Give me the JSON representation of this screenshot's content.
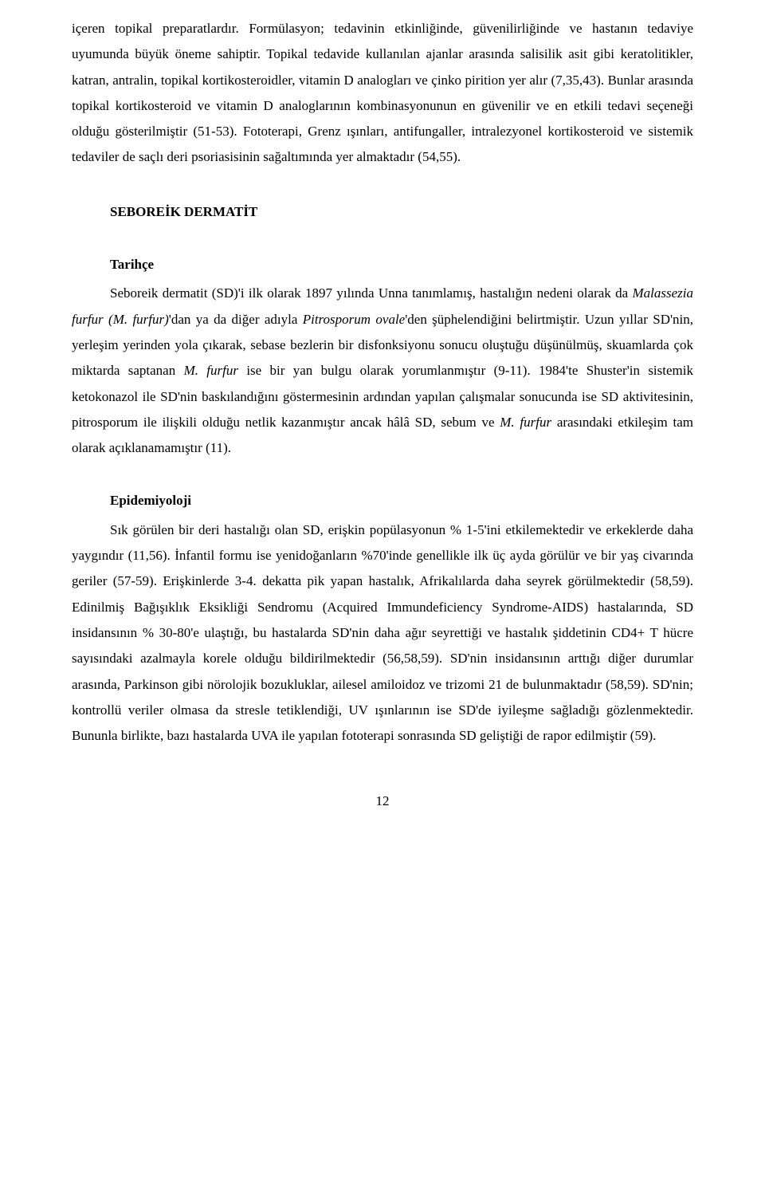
{
  "para1_part1": "içeren topikal preparatlardır. Formülasyon; tedavinin etkinliğinde, güvenilirliğinde ve hastanın tedaviye uyumunda büyük öneme sahiptir. Topikal tedavide kullanılan ajanlar arasında salisilik asit gibi keratolitikler, katran, antralin, topikal kortikosteroidler, vitamin D analogları ve çinko pirition yer alır (7,35,43). Bunlar arasında topikal kortikosteroid ve vitamin D analoglarının kombinasyonunun en güvenilir ve en etkili tedavi seçeneği olduğu gösterilmiştir (51-53). Fototerapi, Grenz ışınları, antifungaller, intralezyonel kortikosteroid ve sistemik tedaviler de saçlı deri psoriasisinin sağaltımında yer almaktadır (54,55).",
  "heading1": "SEBOREİK DERMATİT",
  "sub1": "Tarihçe",
  "p_tarihce_1": "Seboreik dermatit (SD)'i ilk olarak 1897 yılında Unna tanımlamış, hastalığın nedeni olarak da ",
  "p_tarihce_italic1": "Malassezia furfur (M. furfur)",
  "p_tarihce_2": "'dan ya da diğer adıyla ",
  "p_tarihce_italic2": "Pitrosporum ovale",
  "p_tarihce_3": "'den şüphelendiğini belirtmiştir. Uzun yıllar SD'nin, yerleşim yerinden yola çıkarak, sebase bezlerin bir disfonksiyonu sonucu oluştuğu düşünülmüş, skuamlarda çok miktarda saptanan ",
  "p_tarihce_italic3": "M. furfur",
  "p_tarihce_4": " ise bir yan bulgu olarak yorumlanmıştır (9-11). 1984'te Shuster'in sistemik ketokonazol ile SD'nin baskılandığını göstermesinin ardından yapılan çalışmalar sonucunda ise SD aktivitesinin, pitrosporum ile ilişkili olduğu netlik kazanmıştır ancak hâlâ SD, sebum ve ",
  "p_tarihce_italic4": "M. furfur",
  "p_tarihce_5": " arasındaki etkileşim tam olarak açıklanamamıştır (11).",
  "sub2": "Epidemiyoloji",
  "p_epi": "Sık görülen bir deri hastalığı olan SD, erişkin popülasyonun % 1-5'ini etkilemektedir ve erkeklerde daha yaygındır (11,56). İnfantil formu ise yenidoğanların %70'inde genellikle ilk üç ayda görülür ve bir yaş civarında geriler (57-59). Erişkinlerde 3-4. dekatta pik yapan hastalık, Afrikalılarda daha seyrek görülmektedir (58,59). Edinilmiş Bağışıklık Eksikliği Sendromu (Acquired Immundeficiency Syndrome-AIDS) hastalarında, SD insidansının % 30-80'e ulaştığı, bu hastalarda SD'nin daha ağır seyrettiği ve hastalık şiddetinin CD4+ T hücre sayısındaki azalmayla korele olduğu bildirilmektedir (56,58,59). SD'nin insidansının arttığı diğer durumlar arasında, Parkinson gibi nörolojik bozukluklar, ailesel amiloidoz ve trizomi 21 de bulunmaktadır (58,59). SD'nin; kontrollü veriler olmasa da stresle tetiklendiği, UV ışınlarının ise SD'de iyileşme sağladığı gözlenmektedir. Bununla birlikte, bazı hastalarda UVA ile yapılan fototerapi sonrasında SD geliştiği de rapor edilmiştir (59).",
  "page_number": "12"
}
